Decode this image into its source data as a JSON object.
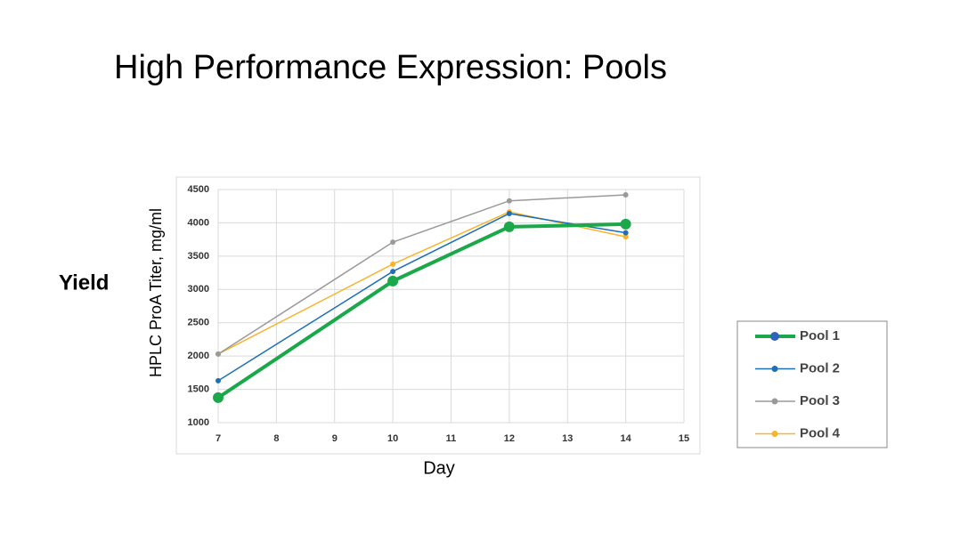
{
  "chart_data": {
    "type": "line",
    "title": "High Performance Expression: Pools",
    "side_label": "Yield",
    "x_label": "Day",
    "y_label": "HPLC ProA Titer, mg/ml",
    "xlim": [
      7,
      15
    ],
    "xticks": [
      7,
      8,
      9,
      10,
      11,
      12,
      13,
      14,
      15
    ],
    "ylim": [
      1000,
      4500
    ],
    "yticks": [
      1000,
      1500,
      2000,
      2500,
      3000,
      3500,
      4000,
      4500
    ],
    "grid": true,
    "x": [
      7,
      10,
      12,
      14
    ],
    "series": [
      {
        "name": "Pool 1",
        "color": "#1ba84b",
        "values": [
          1375,
          3125,
          3940,
          3980
        ]
      },
      {
        "name": "Pool 2",
        "color": "#1f6fb4",
        "values": [
          1630,
          3270,
          4140,
          3850
        ]
      },
      {
        "name": "Pool 3",
        "color": "#9a9a9a",
        "values": [
          2030,
          3710,
          4330,
          4420
        ]
      },
      {
        "name": "Pool 4",
        "color": "#f8b42a",
        "values": [
          2030,
          3380,
          4165,
          3790
        ]
      }
    ]
  }
}
